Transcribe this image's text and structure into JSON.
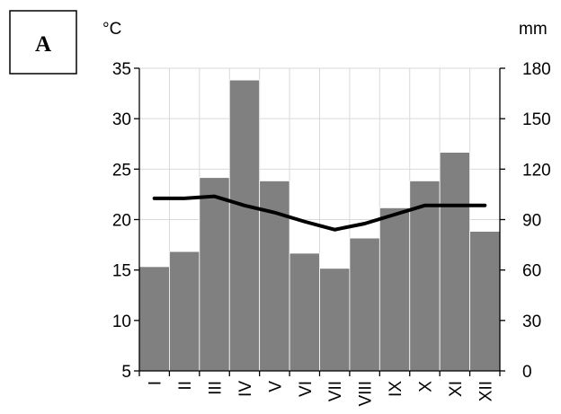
{
  "panel_label": "A",
  "chart_data": {
    "type": "bar",
    "categories": [
      "I",
      "II",
      "III",
      "IV",
      "V",
      "VI",
      "VII",
      "VIII",
      "IX",
      "X",
      "XI",
      "XII"
    ],
    "series": [
      {
        "axis": "right",
        "type": "bar",
        "color": "#808080",
        "values": [
          62,
          71,
          115,
          173,
          113,
          70,
          61,
          79,
          97,
          113,
          130,
          83
        ]
      },
      {
        "axis": "left",
        "type": "line",
        "color": "#000000",
        "values": [
          22.1,
          22.1,
          22.3,
          21.4,
          20.7,
          19.8,
          19.0,
          19.6,
          20.5,
          21.4,
          21.4,
          21.4
        ]
      }
    ],
    "y_left": {
      "unit": "°C",
      "ylim": [
        5,
        35
      ],
      "ticks": [
        5,
        10,
        15,
        20,
        25,
        30,
        35
      ]
    },
    "y_right": {
      "unit": "mm",
      "ylim": [
        0,
        180
      ],
      "ticks": [
        0,
        30,
        60,
        90,
        120,
        150,
        180
      ]
    },
    "grid": true,
    "tick_labels_left": [
      "5",
      "10",
      "15",
      "20",
      "25",
      "30",
      "35"
    ],
    "tick_labels_right": [
      "0",
      "30",
      "60",
      "90",
      "120",
      "150",
      "180"
    ]
  }
}
